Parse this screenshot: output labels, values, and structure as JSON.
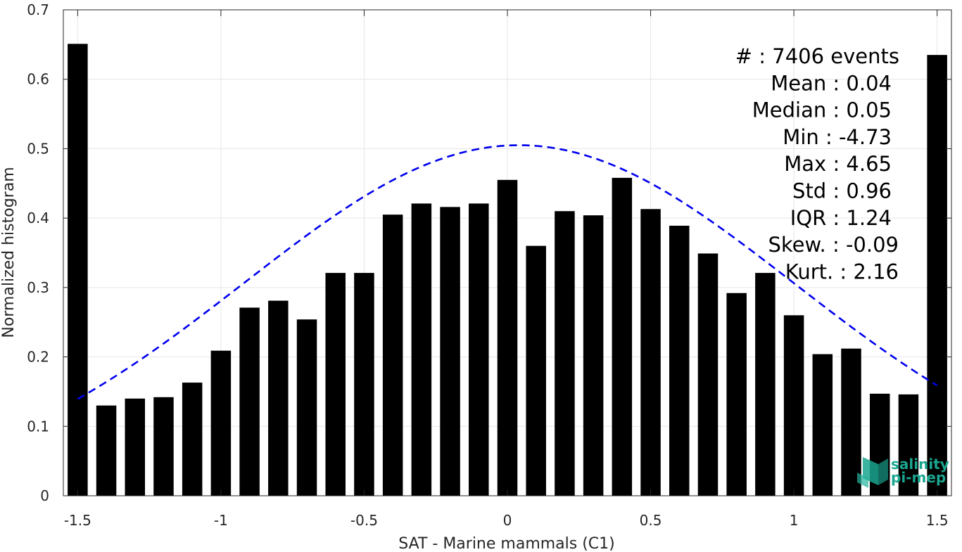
{
  "chart_data": {
    "type": "bar",
    "xlabel": "SAT - Marine mammals (C1)",
    "ylabel": "Normalized histogram",
    "xlim": [
      -1.55,
      1.55
    ],
    "ylim": [
      0,
      0.7
    ],
    "bar_width": 0.07,
    "xticks": [
      "-1.5",
      "-1",
      "-0.5",
      "0",
      "0.5",
      "1",
      "1.5"
    ],
    "xtick_values": [
      -1.5,
      -1,
      -0.5,
      0,
      0.5,
      1,
      1.5
    ],
    "yticks": [
      "0",
      "0.1",
      "0.2",
      "0.3",
      "0.4",
      "0.5",
      "0.6",
      "0.7"
    ],
    "ytick_values": [
      0,
      0.1,
      0.2,
      0.3,
      0.4,
      0.5,
      0.6,
      0.7
    ],
    "grid": true,
    "series": [
      {
        "x": [
          -1.5,
          -1.4,
          -1.3,
          -1.2,
          -1.1,
          -1.0,
          -0.9,
          -0.8,
          -0.7,
          -0.6,
          -0.5,
          -0.4,
          -0.3,
          -0.2,
          -0.1,
          0.0,
          0.1,
          0.2,
          0.3,
          0.4,
          0.5,
          0.6,
          0.7,
          0.8,
          0.9,
          1.0,
          1.1,
          1.2,
          1.3,
          1.4,
          1.5
        ],
        "values": [
          0.651,
          0.13,
          0.14,
          0.142,
          0.163,
          0.209,
          0.271,
          0.281,
          0.254,
          0.321,
          0.321,
          0.405,
          0.421,
          0.416,
          0.421,
          0.455,
          0.36,
          0.41,
          0.404,
          0.458,
          0.413,
          0.389,
          0.349,
          0.292,
          0.321,
          0.26,
          0.204,
          0.212,
          0.147,
          0.146,
          0.635
        ],
        "color": "#000000"
      }
    ],
    "fit_curve": {
      "type": "gaussian",
      "mean": 0.04,
      "std": 0.96,
      "peak": 0.505,
      "x_range": [
        -1.5,
        1.5
      ],
      "color": "#0000ee",
      "style": "dashed"
    },
    "stats_lines": [
      "#  : 7406 events",
      "Mean : 0.04",
      "Median : 0.05",
      "Min : -4.73",
      "Max : 4.65",
      "Std : 0.96",
      "IQR : 1.24",
      "Skew. : -0.09",
      "Kurt. : 2.16"
    ],
    "logo": {
      "line1": "salinity",
      "line2": "pi-mep",
      "color": "#1aa58f"
    }
  }
}
